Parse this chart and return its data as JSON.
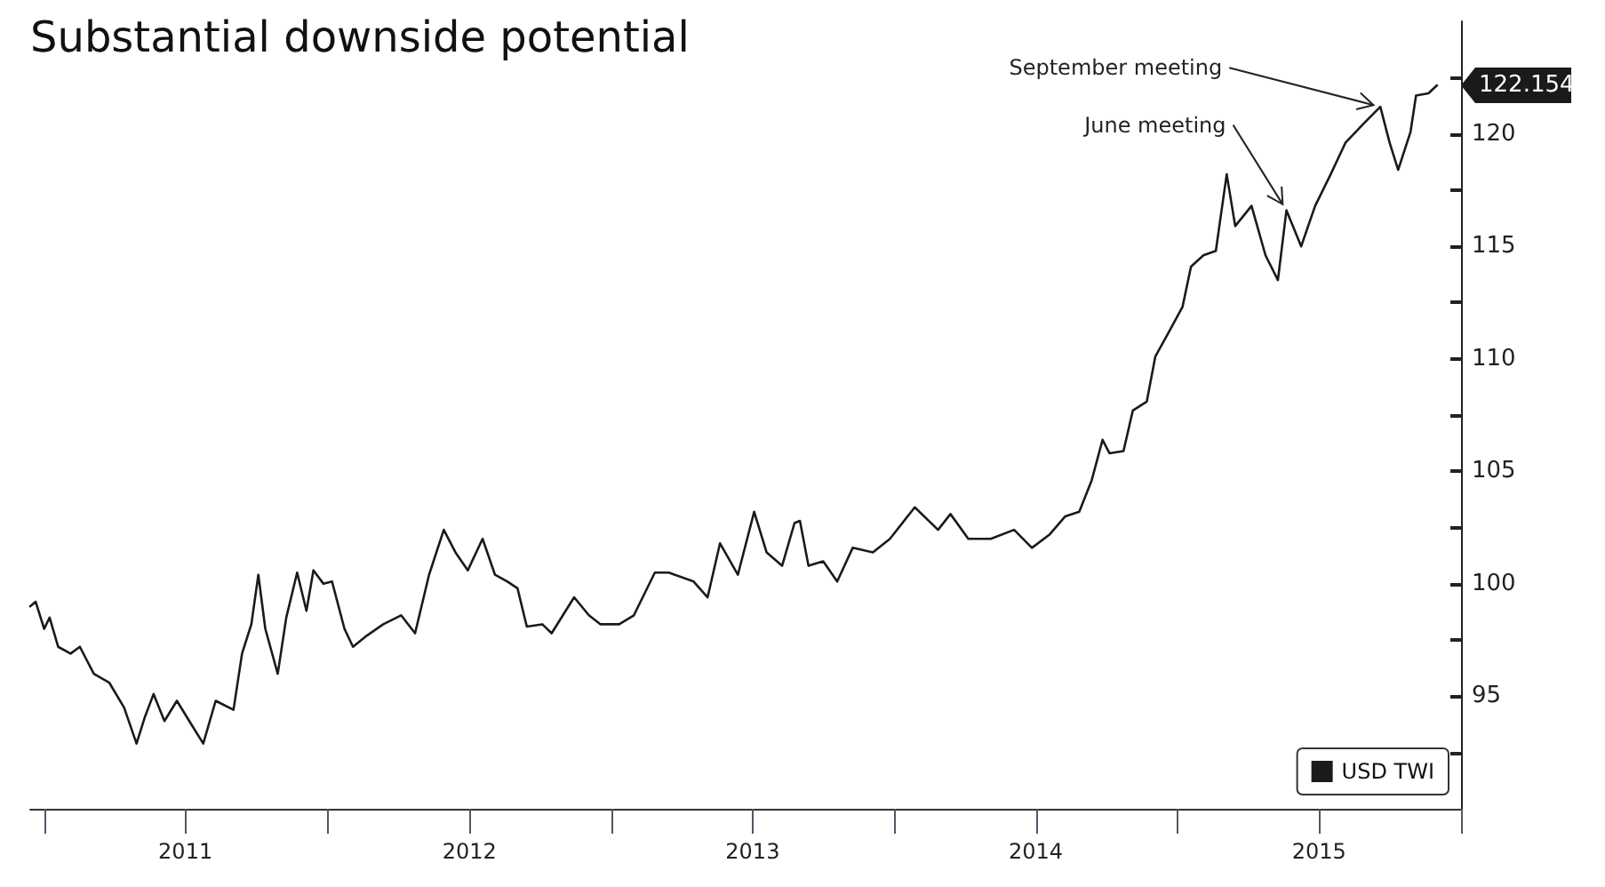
{
  "chart_data": {
    "type": "line",
    "title": "Substantial downside potential",
    "x": [
      "2010-12-14",
      "2010-12-21",
      "2011-01-01",
      "2011-01-08",
      "2011-01-19",
      "2011-02-04",
      "2011-02-16",
      "2011-03-06",
      "2011-03-26",
      "2011-04-14",
      "2011-04-30",
      "2011-05-11",
      "2011-05-22",
      "2011-06-05",
      "2011-06-21",
      "2011-07-07",
      "2011-07-25",
      "2011-08-10",
      "2011-09-02",
      "2011-09-13",
      "2011-09-25",
      "2011-10-04",
      "2011-10-13",
      "2011-10-29",
      "2011-11-09",
      "2011-11-23",
      "2011-12-05",
      "2011-12-14",
      "2011-12-27",
      "2012-01-07",
      "2012-01-23",
      "2012-02-03",
      "2012-02-21",
      "2012-03-13",
      "2012-04-05",
      "2012-04-23",
      "2012-05-11",
      "2012-05-30",
      "2012-06-14",
      "2012-06-30",
      "2012-07-19",
      "2012-08-04",
      "2012-08-20",
      "2012-09-02",
      "2012-09-14",
      "2012-10-04",
      "2012-10-16",
      "2012-11-14",
      "2012-12-03",
      "2012-12-18",
      "2013-01-11",
      "2013-01-30",
      "2013-02-26",
      "2013-03-16",
      "2013-04-17",
      "2013-05-05",
      "2013-05-21",
      "2013-06-13",
      "2013-07-04",
      "2013-07-20",
      "2013-08-09",
      "2013-08-25",
      "2013-09-01",
      "2013-09-12",
      "2013-10-01",
      "2013-10-19",
      "2013-11-08",
      "2013-12-04",
      "2013-12-26",
      "2014-01-27",
      "2014-02-26",
      "2014-03-14",
      "2014-04-06",
      "2014-05-05",
      "2014-06-04",
      "2014-06-27",
      "2014-07-20",
      "2014-08-09",
      "2014-08-27",
      "2014-09-12",
      "2014-09-26",
      "2014-10-05",
      "2014-10-23",
      "2014-11-04",
      "2014-11-22",
      "2014-12-03",
      "2014-12-19",
      "2015-01-07",
      "2015-01-18",
      "2015-02-03",
      "2015-02-19",
      "2015-03-05",
      "2015-03-16",
      "2015-04-06",
      "2015-04-24",
      "2015-05-10",
      "2015-05-21",
      "2015-06-09",
      "2015-06-27",
      "2015-07-17",
      "2015-08-05",
      "2015-08-27",
      "2015-09-19",
      "2015-10-01",
      "2015-10-12",
      "2015-10-28",
      "2015-11-04",
      "2015-11-20",
      "2015-12-01"
    ],
    "series": [
      {
        "name": "USD TWI",
        "color": "#1a1a1a",
        "values": [
          99.0,
          99.2,
          98.0,
          98.5,
          97.2,
          96.9,
          97.2,
          96.0,
          95.6,
          94.5,
          92.9,
          94.1,
          95.1,
          93.9,
          94.8,
          93.9,
          92.9,
          94.8,
          94.4,
          96.9,
          98.2,
          100.4,
          98.0,
          96.0,
          98.5,
          100.5,
          98.8,
          100.6,
          100.0,
          100.1,
          98.0,
          97.2,
          97.7,
          98.2,
          98.6,
          97.8,
          100.4,
          102.4,
          101.4,
          100.6,
          102.0,
          100.4,
          100.1,
          99.8,
          98.1,
          98.2,
          97.8,
          99.4,
          98.6,
          98.2,
          98.2,
          98.6,
          100.5,
          100.5,
          100.1,
          99.4,
          101.8,
          100.4,
          103.2,
          101.4,
          100.8,
          102.7,
          102.8,
          100.8,
          101.0,
          100.1,
          101.6,
          101.4,
          102.0,
          103.4,
          102.4,
          103.1,
          102.0,
          102.0,
          102.4,
          101.6,
          102.2,
          103.0,
          103.2,
          104.6,
          106.4,
          105.8,
          105.9,
          107.7,
          108.1,
          110.1,
          111.1,
          112.3,
          114.1,
          114.6,
          114.8,
          118.2,
          115.9,
          116.8,
          114.6,
          113.5,
          116.6,
          115.0,
          116.8,
          118.2,
          119.6,
          120.4,
          121.2,
          119.6,
          118.4,
          120.1,
          121.7,
          121.8,
          122.154
        ]
      }
    ],
    "xlim": [
      "2010-12-14",
      "2016-01-01"
    ],
    "xticks": [
      {
        "value": "2011-01-01",
        "label": null
      },
      {
        "value": "2011-07-02",
        "label": "2011"
      },
      {
        "value": "2012-01-01",
        "label": null
      },
      {
        "value": "2012-07-02",
        "label": "2012"
      },
      {
        "value": "2013-01-01",
        "label": null
      },
      {
        "value": "2013-07-02",
        "label": "2013"
      },
      {
        "value": "2014-01-01",
        "label": null
      },
      {
        "value": "2014-07-02",
        "label": "2014"
      },
      {
        "value": "2015-01-01",
        "label": null
      },
      {
        "value": "2015-07-02",
        "label": "2015"
      },
      {
        "value": "2016-01-01",
        "label": null
      }
    ],
    "ylim": [
      90,
      125
    ],
    "yticks": [
      {
        "value": 92.5,
        "label": null
      },
      95,
      {
        "value": 97.5,
        "label": null
      },
      100,
      {
        "value": 102.5,
        "label": null
      },
      105,
      {
        "value": 107.5,
        "label": null
      },
      110,
      {
        "value": 112.5,
        "label": null
      },
      115,
      {
        "value": 117.5,
        "label": null
      },
      120,
      {
        "value": 122.5,
        "label": null
      }
    ],
    "annotations": [
      {
        "text": "September meeting",
        "x": "2015-09-19",
        "y": 121.2
      },
      {
        "text": "June meeting",
        "x": "2015-05-21",
        "y": 116.6
      },
      {
        "text": "122.154",
        "x": "2015-12-01",
        "y": 122.154
      }
    ],
    "legend": "bottom right",
    "grid": false,
    "marker": "none",
    "line_style": "solid"
  }
}
